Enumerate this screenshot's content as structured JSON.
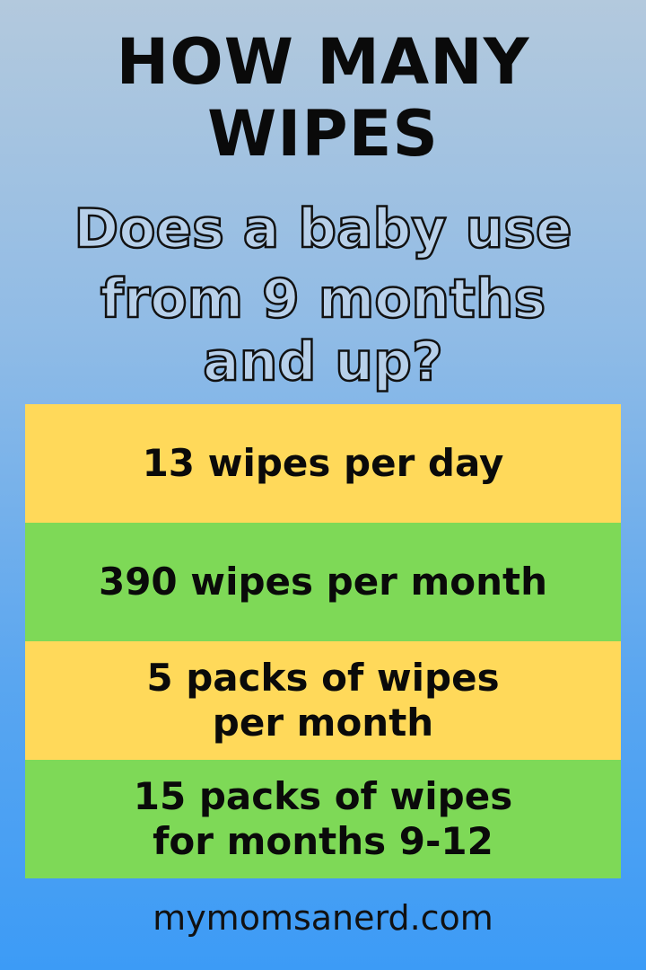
{
  "title": {
    "line1": "HOW MANY",
    "line2": "WIPES"
  },
  "subtitle": {
    "line1": "Does a baby use",
    "line2": "from 9 months",
    "line3": "and up?"
  },
  "facts": [
    {
      "text": "13 wipes per day",
      "color": "#ffd95a"
    },
    {
      "text": "390 wipes per month",
      "color": "#7ed957"
    },
    {
      "line1": "5 packs of wipes",
      "line2": "per month",
      "color": "#ffd95a"
    },
    {
      "line1": "15 packs of wipes",
      "line2": "for months 9-12",
      "color": "#7ed957"
    }
  ],
  "footer": "mymomsanerd.com"
}
